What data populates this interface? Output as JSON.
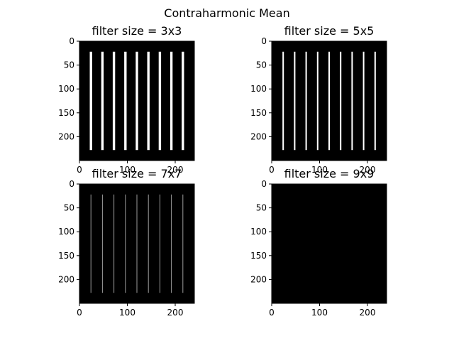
{
  "figure": {
    "suptitle": "Contraharmonic Mean"
  },
  "colors": {
    "background": "#000000",
    "bright_line": "#ffffff",
    "dim_line": "#9a9a9a"
  },
  "chart_data": [
    {
      "type": "heatmap",
      "title": "filter size = 3x3",
      "xlim": [
        0,
        240
      ],
      "ylim": [
        250,
        0
      ],
      "x_ticks": [
        0,
        100,
        200
      ],
      "y_ticks": [
        0,
        50,
        100,
        150,
        200
      ],
      "x_tick_labels": [
        "0",
        "100",
        "200"
      ],
      "y_tick_labels": [
        "0",
        "50",
        "100",
        "150",
        "200"
      ],
      "lines": {
        "x_centers": [
          24,
          48,
          72,
          96,
          120,
          144,
          168,
          192,
          216
        ],
        "y_range": [
          22,
          228
        ],
        "width": 5,
        "intensity": 1.0
      }
    },
    {
      "type": "heatmap",
      "title": "filter size = 5x5",
      "xlim": [
        0,
        240
      ],
      "ylim": [
        250,
        0
      ],
      "x_ticks": [
        0,
        100,
        200
      ],
      "y_ticks": [
        0,
        50,
        100,
        150,
        200
      ],
      "x_tick_labels": [
        "0",
        "100",
        "200"
      ],
      "y_tick_labels": [
        "0",
        "50",
        "100",
        "150",
        "200"
      ],
      "lines": {
        "x_centers": [
          24,
          48,
          72,
          96,
          120,
          144,
          168,
          192,
          216
        ],
        "y_range": [
          22,
          228
        ],
        "width": 3,
        "intensity": 1.0
      }
    },
    {
      "type": "heatmap",
      "title": "filter size = 7x7",
      "xlim": [
        0,
        240
      ],
      "ylim": [
        250,
        0
      ],
      "x_ticks": [
        0,
        100,
        200
      ],
      "y_ticks": [
        0,
        50,
        100,
        150,
        200
      ],
      "x_tick_labels": [
        "0",
        "100",
        "200"
      ],
      "y_tick_labels": [
        "0",
        "50",
        "100",
        "150",
        "200"
      ],
      "lines": {
        "x_centers": [
          24,
          48,
          72,
          96,
          120,
          144,
          168,
          192,
          216
        ],
        "y_range": [
          22,
          228
        ],
        "width": 1.5,
        "intensity": 0.6
      }
    },
    {
      "type": "heatmap",
      "title": "filter size = 9x9",
      "xlim": [
        0,
        240
      ],
      "ylim": [
        250,
        0
      ],
      "x_ticks": [
        0,
        100,
        200
      ],
      "y_ticks": [
        0,
        50,
        100,
        150,
        200
      ],
      "x_tick_labels": [
        "0",
        "100",
        "200"
      ],
      "y_tick_labels": [
        "0",
        "50",
        "100",
        "150",
        "200"
      ],
      "lines": null
    }
  ]
}
